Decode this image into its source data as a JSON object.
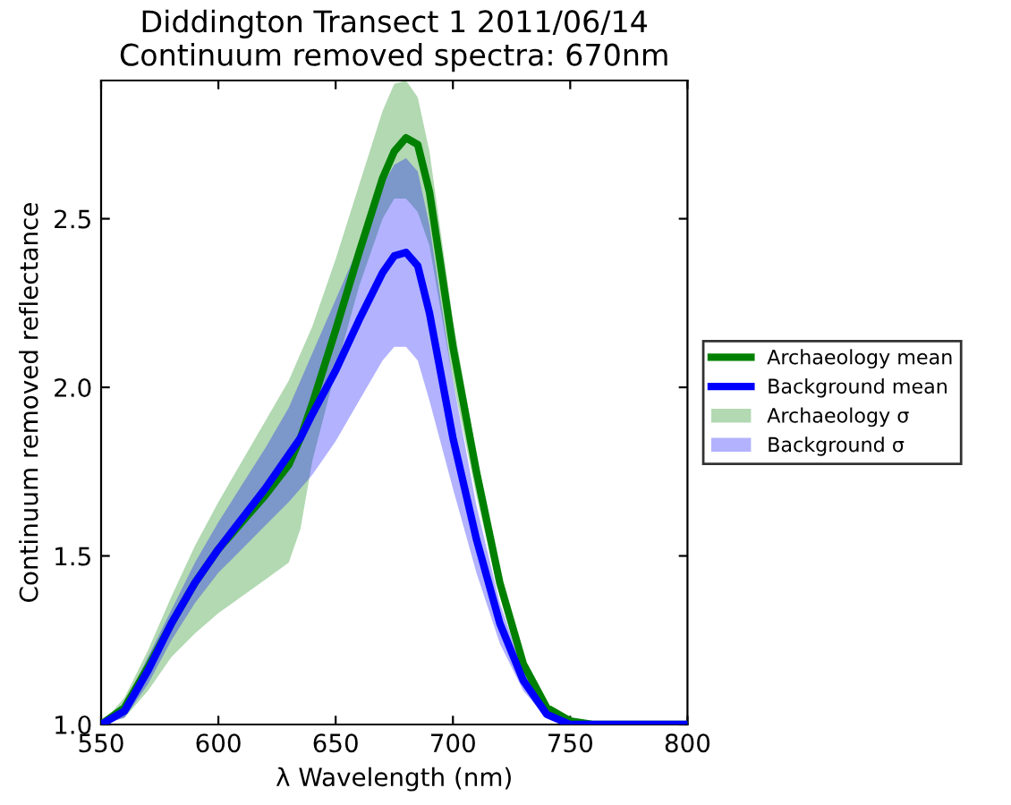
{
  "chart_data": {
    "type": "line",
    "title": "Diddington Transect 1 2011/06/14\nContinuum removed spectra: 670nm",
    "xlabel": "λ Wavelength (nm)",
    "ylabel": "Continuum removed reflectance",
    "x": [
      550,
      560,
      570,
      580,
      590,
      600,
      610,
      620,
      630,
      635,
      640,
      650,
      660,
      670,
      675,
      680,
      685,
      690,
      700,
      710,
      720,
      730,
      740,
      750,
      760,
      800
    ],
    "series": [
      {
        "name": "Archaeology mean",
        "color": "#008000",
        "values": [
          1.0,
          1.05,
          1.17,
          1.3,
          1.42,
          1.52,
          1.6,
          1.68,
          1.77,
          1.85,
          1.95,
          2.17,
          2.4,
          2.62,
          2.7,
          2.74,
          2.72,
          2.58,
          2.12,
          1.75,
          1.42,
          1.18,
          1.05,
          1.01,
          1.0,
          1.0
        ],
        "lower": [
          1.0,
          1.02,
          1.1,
          1.2,
          1.27,
          1.33,
          1.38,
          1.43,
          1.48,
          1.58,
          1.78,
          2.05,
          2.3,
          2.5,
          2.56,
          2.56,
          2.52,
          2.42,
          2.02,
          1.68,
          1.38,
          1.15,
          1.04,
          1.0,
          1.0,
          1.0
        ],
        "upper": [
          1.0,
          1.08,
          1.22,
          1.38,
          1.53,
          1.66,
          1.78,
          1.9,
          2.02,
          2.1,
          2.18,
          2.38,
          2.6,
          2.82,
          2.9,
          2.91,
          2.86,
          2.7,
          2.2,
          1.8,
          1.46,
          1.2,
          1.06,
          1.01,
          1.0,
          1.0
        ]
      },
      {
        "name": "Background mean",
        "color": "#0000ff",
        "values": [
          1.0,
          1.04,
          1.16,
          1.3,
          1.42,
          1.52,
          1.61,
          1.7,
          1.8,
          1.85,
          1.92,
          2.05,
          2.2,
          2.34,
          2.39,
          2.4,
          2.36,
          2.22,
          1.85,
          1.55,
          1.3,
          1.13,
          1.03,
          1.0,
          1.0,
          1.0
        ],
        "lower": [
          1.0,
          1.02,
          1.12,
          1.25,
          1.36,
          1.45,
          1.52,
          1.59,
          1.66,
          1.7,
          1.74,
          1.84,
          1.96,
          2.08,
          2.12,
          2.12,
          2.08,
          1.96,
          1.7,
          1.45,
          1.24,
          1.1,
          1.02,
          1.0,
          1.0,
          1.0
        ],
        "upper": [
          1.0,
          1.06,
          1.2,
          1.34,
          1.48,
          1.6,
          1.71,
          1.82,
          1.94,
          2.02,
          2.1,
          2.26,
          2.42,
          2.6,
          2.66,
          2.68,
          2.64,
          2.48,
          2.02,
          1.65,
          1.36,
          1.16,
          1.04,
          1.0,
          1.0,
          1.0
        ]
      }
    ],
    "annotations": [
      "Archaeology σ",
      "Background σ"
    ],
    "xlim": [
      550,
      800
    ],
    "xticks": [
      550,
      600,
      650,
      700,
      750,
      800
    ],
    "ylim": [
      1.0,
      2.91
    ],
    "yticks": [
      {
        "value": 1.0,
        "label": "1.0"
      },
      {
        "value": 1.5,
        "label": "1.5"
      },
      {
        "value": 2.0,
        "label": "2.0"
      },
      {
        "value": 2.5,
        "label": "2.5"
      }
    ],
    "grid": false,
    "legend": "right"
  }
}
